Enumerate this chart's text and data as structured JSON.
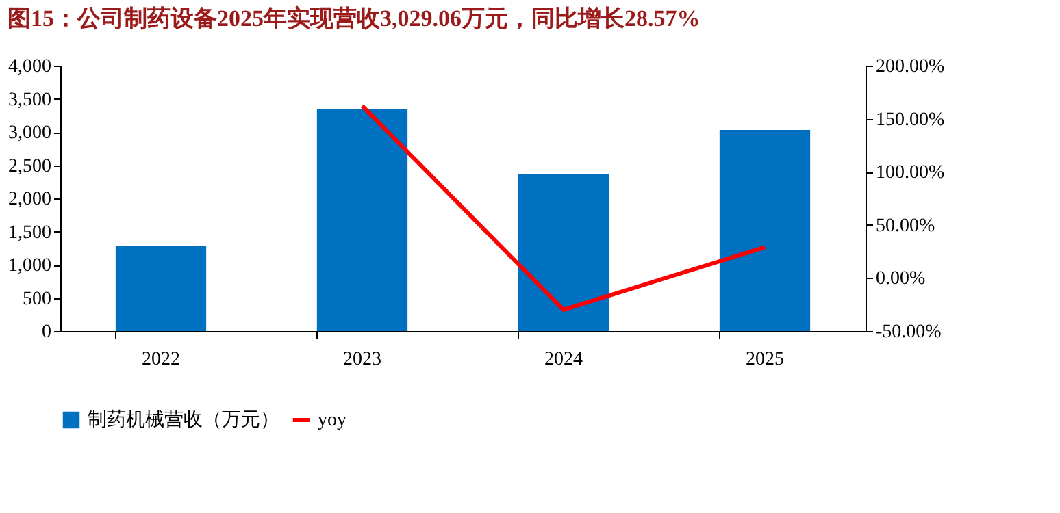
{
  "chart_data": {
    "type": "bar",
    "title": "图15：公司制药设备2025年实现营收3,029.06万元，同比增长28.57%",
    "categories": [
      "2022",
      "2023",
      "2024",
      "2025"
    ],
    "series": [
      {
        "name": "制药机械营收（万元）",
        "color": "#0070c0",
        "values": [
          1280,
          3350,
          2360,
          3030
        ]
      },
      {
        "name": "yoy",
        "type": "line",
        "axis": "y2",
        "color": "#ff0000",
        "values": [
          null,
          162,
          -30,
          29
        ]
      }
    ],
    "ylim": [
      0,
      4000
    ],
    "yticks": [
      {
        "value": 0,
        "label": "0"
      },
      {
        "value": 500,
        "label": "500"
      },
      {
        "value": 1000,
        "label": "1,000"
      },
      {
        "value": 1500,
        "label": "1,500"
      },
      {
        "value": 2000,
        "label": "2,000"
      },
      {
        "value": 2500,
        "label": "2,500"
      },
      {
        "value": 3000,
        "label": "3,000"
      },
      {
        "value": 3500,
        "label": "3,500"
      },
      {
        "value": 4000,
        "label": "4,000"
      }
    ],
    "y2lim": [
      -50,
      200
    ],
    "y2ticks": [
      {
        "value": -50,
        "label": "-50.00%"
      },
      {
        "value": 0,
        "label": "0.00%"
      },
      {
        "value": 50,
        "label": "50.00%"
      },
      {
        "value": 100,
        "label": "100.00%"
      },
      {
        "value": 150,
        "label": "150.00%"
      },
      {
        "value": 200,
        "label": "200.00%"
      }
    ],
    "grid": false,
    "legend": "bottom",
    "marker": "none",
    "line_style": "solid"
  }
}
